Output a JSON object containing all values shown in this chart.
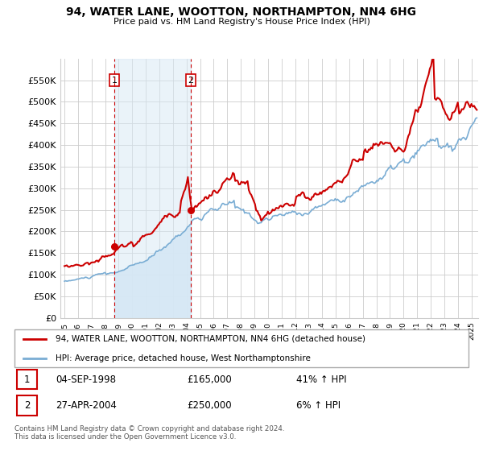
{
  "title": "94, WATER LANE, WOOTTON, NORTHAMPTON, NN4 6HG",
  "subtitle": "Price paid vs. HM Land Registry's House Price Index (HPI)",
  "legend_line1": "94, WATER LANE, WOOTTON, NORTHAMPTON, NN4 6HG (detached house)",
  "legend_line2": "HPI: Average price, detached house, West Northamptonshire",
  "sale1_date": "04-SEP-1998",
  "sale1_price": "£165,000",
  "sale1_hpi": "41% ↑ HPI",
  "sale2_date": "27-APR-2004",
  "sale2_price": "£250,000",
  "sale2_hpi": "6% ↑ HPI",
  "footer": "Contains HM Land Registry data © Crown copyright and database right 2024.\nThis data is licensed under the Open Government Licence v3.0.",
  "red_color": "#cc0000",
  "blue_color": "#7aadd4",
  "shade_color": "#d6e8f5",
  "ylim": [
    0,
    600000
  ],
  "yticks": [
    0,
    50000,
    100000,
    150000,
    200000,
    250000,
    300000,
    350000,
    400000,
    450000,
    500000,
    550000
  ],
  "sale1_x": 1998.67,
  "sale1_y": 165000,
  "sale2_x": 2004.32,
  "sale2_y": 250000,
  "xmin": 1995.0,
  "xmax": 2025.5
}
